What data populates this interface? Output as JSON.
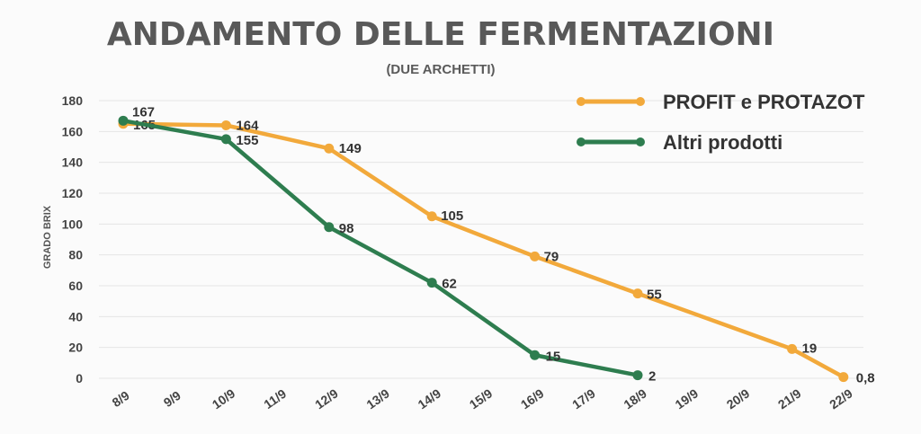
{
  "chart_data": {
    "type": "line",
    "title": "ANDAMENTO DELLE FERMENTAZIONI",
    "subtitle": "(DUE ARCHETTI)",
    "ylabel": "GRADO BRIX",
    "xlabel": "",
    "ylim": [
      0,
      180
    ],
    "yticks": [
      "0",
      "20",
      "40",
      "60",
      "80",
      "100",
      "120",
      "140",
      "160",
      "180"
    ],
    "categories": [
      "8/9",
      "9/9",
      "10/9",
      "11/9",
      "12/9",
      "13/9",
      "14/9",
      "15/9",
      "16/9",
      "17/9",
      "18/9",
      "19/9",
      "20/9",
      "21/9",
      "22/9"
    ],
    "grid": true,
    "legend_position": "top-right",
    "series": [
      {
        "name": "PROFIT e PROTAZOT",
        "color": "#f2a93b",
        "points": [
          {
            "x": "8/9",
            "y": 165,
            "label": "165"
          },
          {
            "x": "10/9",
            "y": 164,
            "label": "164"
          },
          {
            "x": "12/9",
            "y": 149,
            "label": "149"
          },
          {
            "x": "14/9",
            "y": 105,
            "label": "105"
          },
          {
            "x": "16/9",
            "y": 79,
            "label": "79"
          },
          {
            "x": "18/9",
            "y": 55,
            "label": "55"
          },
          {
            "x": "21/9",
            "y": 19,
            "label": "19"
          },
          {
            "x": "22/9",
            "y": 0.8,
            "label": "0,8"
          }
        ]
      },
      {
        "name": "Altri prodotti",
        "color": "#2e7d4f",
        "points": [
          {
            "x": "8/9",
            "y": 167,
            "label": "167"
          },
          {
            "x": "10/9",
            "y": 155,
            "label": "155"
          },
          {
            "x": "12/9",
            "y": 98,
            "label": "98"
          },
          {
            "x": "14/9",
            "y": 62,
            "label": "62"
          },
          {
            "x": "16/9",
            "y": 15,
            "label": "15"
          },
          {
            "x": "18/9",
            "y": 2,
            "label": "2"
          }
        ]
      }
    ]
  }
}
